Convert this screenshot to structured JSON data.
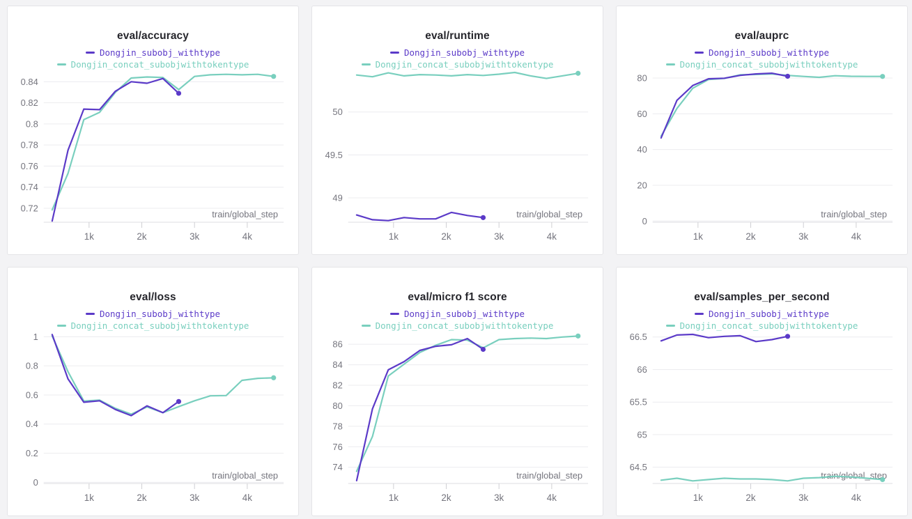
{
  "theme": {
    "page_background": "#f3f3f5",
    "panel_background": "#ffffff",
    "panel_border": "#e4e4e7",
    "title_color": "#26262c",
    "grid_color": "#ececef",
    "axis_color": "#dcdce0",
    "tick_color": "#cfcfd4",
    "tick_label_color": "#75757e",
    "series_colors": {
      "purple": "#5b3ac8",
      "teal": "#79cfbe"
    }
  },
  "chart_data": [
    {
      "type": "line",
      "title": "eval/accuracy",
      "xlabel": "train/global_step",
      "xlim": [
        140,
        4690
      ],
      "ylim": [
        0.7068,
        0.8481
      ],
      "x_ticks": [
        1000,
        2000,
        3000,
        4000
      ],
      "x_tick_labels": [
        "1k",
        "2k",
        "3k",
        "4k"
      ],
      "y_ticks": [
        0.72,
        0.74,
        0.76,
        0.78,
        0.8,
        0.82,
        0.84
      ],
      "y_tick_labels": [
        "0.72",
        "0.74",
        "0.76",
        "0.78",
        "0.8",
        "0.82",
        "0.84"
      ],
      "series": [
        {
          "name": "Dongjin_subobj_withtype",
          "color": "#5b3ac8",
          "x": [
            300,
            600,
            900,
            1200,
            1500,
            1800,
            2100,
            2400,
            2700
          ],
          "y": [
            0.708,
            0.775,
            0.814,
            0.8135,
            0.831,
            0.84,
            0.8385,
            0.843,
            0.829
          ]
        },
        {
          "name": "Dongjin_concat_subobjwithtokentype",
          "color": "#79cfbe",
          "x": [
            300,
            600,
            900,
            1200,
            1500,
            1800,
            2100,
            2400,
            2700,
            3000,
            3300,
            3600,
            3900,
            4200,
            4500
          ],
          "y": [
            0.7185,
            0.753,
            0.804,
            0.811,
            0.83,
            0.8435,
            0.8445,
            0.844,
            0.8325,
            0.845,
            0.8465,
            0.847,
            0.8465,
            0.847,
            0.845
          ]
        }
      ]
    },
    {
      "type": "line",
      "title": "eval/runtime",
      "xlabel": "train/global_step",
      "xlim": [
        140,
        4690
      ],
      "ylim": [
        48.716,
        50.452
      ],
      "x_ticks": [
        1000,
        2000,
        3000,
        4000
      ],
      "x_tick_labels": [
        "1k",
        "2k",
        "3k",
        "4k"
      ],
      "y_ticks": [
        49,
        49.5,
        50
      ],
      "y_tick_labels": [
        "49",
        "49.5",
        "50"
      ],
      "series": [
        {
          "name": "Dongjin_subobj_withtype",
          "color": "#5b3ac8",
          "x": [
            300,
            600,
            900,
            1200,
            1500,
            1800,
            2100,
            2400,
            2700
          ],
          "y": [
            48.8,
            48.745,
            48.735,
            48.77,
            48.755,
            48.755,
            48.83,
            48.795,
            48.77
          ]
        },
        {
          "name": "Dongjin_concat_subobjwithtokentype",
          "color": "#79cfbe",
          "x": [
            300,
            600,
            900,
            1200,
            1500,
            1800,
            2100,
            2400,
            2700,
            3000,
            3300,
            3600,
            3900,
            4200,
            4500
          ],
          "y": [
            50.43,
            50.41,
            50.455,
            50.42,
            50.435,
            50.43,
            50.42,
            50.435,
            50.425,
            50.44,
            50.46,
            50.42,
            50.39,
            50.42,
            50.45
          ]
        }
      ]
    },
    {
      "type": "line",
      "title": "eval/auprc",
      "xlabel": "train/global_step",
      "xlim": [
        140,
        4690
      ],
      "ylim": [
        -0.66,
        82.74
      ],
      "x_ticks": [
        1000,
        2000,
        3000,
        4000
      ],
      "x_tick_labels": [
        "1k",
        "2k",
        "3k",
        "4k"
      ],
      "y_ticks": [
        0,
        20,
        40,
        60,
        80
      ],
      "y_tick_labels": [
        "0",
        "20",
        "40",
        "60",
        "80"
      ],
      "series": [
        {
          "name": "Dongjin_subobj_withtype",
          "color": "#5b3ac8",
          "x": [
            300,
            600,
            900,
            1200,
            1500,
            1800,
            2100,
            2400,
            2700
          ],
          "y": [
            46.5,
            67.5,
            75.8,
            79.6,
            79.9,
            81.5,
            82.3,
            82.7,
            81.0
          ]
        },
        {
          "name": "Dongjin_concat_subobjwithtokentype",
          "color": "#79cfbe",
          "x": [
            300,
            600,
            900,
            1200,
            1500,
            1800,
            2100,
            2400,
            2700,
            3000,
            3300,
            3600,
            3900,
            4200,
            4500
          ],
          "y": [
            47.5,
            63.0,
            74.3,
            79.2,
            79.8,
            81.8,
            82.0,
            82.3,
            81.5,
            80.9,
            80.4,
            81.3,
            81.0,
            80.9,
            80.9
          ]
        }
      ]
    },
    {
      "type": "line",
      "title": "eval/loss",
      "xlabel": "train/global_step",
      "xlim": [
        140,
        4690
      ],
      "ylim": [
        -0.008,
        1.016
      ],
      "x_ticks": [
        1000,
        2000,
        3000,
        4000
      ],
      "x_tick_labels": [
        "1k",
        "2k",
        "3k",
        "4k"
      ],
      "y_ticks": [
        0,
        0.2,
        0.4,
        0.6,
        0.8,
        1
      ],
      "y_tick_labels": [
        "0",
        "0.2",
        "0.4",
        "0.6",
        "0.8",
        "1"
      ],
      "series": [
        {
          "name": "Dongjin_subobj_withtype",
          "color": "#5b3ac8",
          "x": [
            300,
            600,
            900,
            1200,
            1500,
            1800,
            2100,
            2400,
            2700
          ],
          "y": [
            1.015,
            0.71,
            0.55,
            0.56,
            0.5,
            0.458,
            0.525,
            0.478,
            0.555
          ]
        },
        {
          "name": "Dongjin_concat_subobjwithtokentype",
          "color": "#79cfbe",
          "x": [
            300,
            600,
            900,
            1200,
            1500,
            1800,
            2100,
            2400,
            2700,
            3000,
            3300,
            3600,
            3900,
            4200,
            4500
          ],
          "y": [
            1.005,
            0.76,
            0.558,
            0.565,
            0.508,
            0.468,
            0.518,
            0.478,
            0.52,
            0.56,
            0.594,
            0.596,
            0.7,
            0.714,
            0.718
          ]
        }
      ]
    },
    {
      "type": "line",
      "title": "eval/micro f1 score",
      "xlabel": "train/global_step",
      "xlim": [
        140,
        4690
      ],
      "ylim": [
        72.42,
        86.96
      ],
      "x_ticks": [
        1000,
        2000,
        3000,
        4000
      ],
      "x_tick_labels": [
        "1k",
        "2k",
        "3k",
        "4k"
      ],
      "y_ticks": [
        74,
        76,
        78,
        80,
        82,
        84,
        86
      ],
      "y_tick_labels": [
        "74",
        "76",
        "78",
        "80",
        "82",
        "84",
        "86"
      ],
      "series": [
        {
          "name": "Dongjin_subobj_withtype",
          "color": "#5b3ac8",
          "x": [
            300,
            600,
            900,
            1200,
            1500,
            1800,
            2100,
            2400,
            2700
          ],
          "y": [
            72.7,
            79.7,
            83.5,
            84.3,
            85.4,
            85.8,
            85.95,
            86.55,
            85.5
          ]
        },
        {
          "name": "Dongjin_concat_subobjwithtokentype",
          "color": "#79cfbe",
          "x": [
            300,
            600,
            900,
            1200,
            1500,
            1800,
            2100,
            2400,
            2700,
            3000,
            3300,
            3600,
            3900,
            4200,
            4500
          ],
          "y": [
            73.6,
            77.0,
            82.9,
            84.05,
            85.2,
            85.9,
            86.45,
            86.4,
            85.65,
            86.45,
            86.55,
            86.6,
            86.55,
            86.7,
            86.8
          ]
        }
      ]
    },
    {
      "type": "line",
      "title": "eval/samples_per_second",
      "xlabel": "train/global_step",
      "xlim": [
        140,
        4690
      ],
      "ylim": [
        64.25,
        66.54
      ],
      "x_ticks": [
        1000,
        2000,
        3000,
        4000
      ],
      "x_tick_labels": [
        "1k",
        "2k",
        "3k",
        "4k"
      ],
      "y_ticks": [
        64.5,
        65,
        65.5,
        66,
        66.5
      ],
      "y_tick_labels": [
        "64.5",
        "65",
        "65.5",
        "66",
        "66.5"
      ],
      "series": [
        {
          "name": "Dongjin_subobj_withtype",
          "color": "#5b3ac8",
          "x": [
            300,
            600,
            900,
            1200,
            1500,
            1800,
            2100,
            2400,
            2700
          ],
          "y": [
            66.44,
            66.53,
            66.54,
            66.49,
            66.51,
            66.52,
            66.43,
            66.46,
            66.51
          ]
        },
        {
          "name": "Dongjin_concat_subobjwithtokentype",
          "color": "#79cfbe",
          "x": [
            300,
            600,
            900,
            1200,
            1500,
            1800,
            2100,
            2400,
            2700,
            3000,
            3300,
            3600,
            3900,
            4200,
            4500
          ],
          "y": [
            64.3,
            64.33,
            64.29,
            64.31,
            64.33,
            64.32,
            64.32,
            64.31,
            64.29,
            64.33,
            64.34,
            64.36,
            64.35,
            64.33,
            64.31
          ]
        }
      ]
    }
  ]
}
